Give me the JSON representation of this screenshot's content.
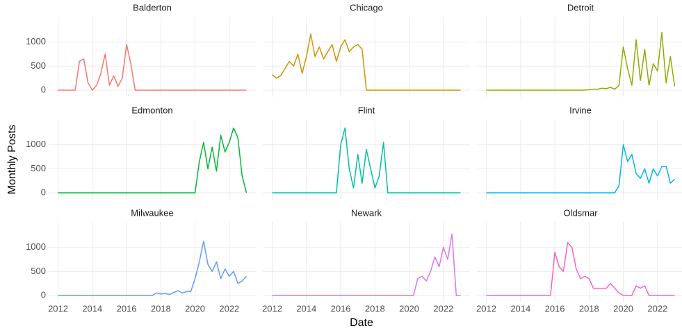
{
  "chart_data": {
    "type": "line",
    "x_label": "Date",
    "y_label": "Monthly Posts",
    "xlim": [
      2011.45,
      2023.55
    ],
    "ylim": [
      -145,
      1530
    ],
    "xticks": [
      2012,
      2014,
      2016,
      2018,
      2020,
      2022
    ],
    "yticks": [
      0,
      500,
      1000
    ],
    "grid": true,
    "x": [
      2012,
      2012.25,
      2012.5,
      2012.75,
      2013,
      2013.25,
      2013.5,
      2013.75,
      2014,
      2014.25,
      2014.5,
      2014.75,
      2015,
      2015.25,
      2015.5,
      2015.75,
      2016,
      2016.25,
      2016.5,
      2016.75,
      2017,
      2017.25,
      2017.5,
      2017.75,
      2018,
      2018.25,
      2018.5,
      2018.75,
      2019,
      2019.25,
      2019.5,
      2019.75,
      2020,
      2020.25,
      2020.5,
      2020.75,
      2021,
      2021.25,
      2021.5,
      2021.75,
      2022,
      2022.25,
      2022.5,
      2022.75,
      2023
    ],
    "facets": [
      {
        "title": "Balderton",
        "color": "#F8766D",
        "values": [
          0,
          0,
          0,
          0,
          0,
          600,
          650,
          150,
          0,
          100,
          350,
          750,
          100,
          300,
          80,
          250,
          950,
          550,
          0,
          0,
          0,
          0,
          0,
          0,
          0,
          0,
          0,
          0,
          0,
          0,
          0,
          0,
          0,
          0,
          0,
          0,
          0,
          0,
          0,
          0,
          0,
          0,
          0,
          0,
          0
        ]
      },
      {
        "title": "Chicago",
        "color": "#D39200",
        "values": [
          320,
          250,
          300,
          450,
          600,
          500,
          750,
          350,
          700,
          1170,
          700,
          900,
          650,
          800,
          950,
          600,
          900,
          1050,
          800,
          900,
          950,
          850,
          0,
          0,
          0,
          0,
          0,
          0,
          0,
          0,
          0,
          0,
          0,
          0,
          0,
          0,
          0,
          0,
          0,
          0,
          0,
          0,
          0,
          0,
          0
        ]
      },
      {
        "title": "Detroit",
        "color": "#93AA00",
        "values": [
          0,
          0,
          0,
          0,
          0,
          0,
          0,
          0,
          0,
          0,
          0,
          0,
          0,
          0,
          0,
          0,
          0,
          0,
          0,
          0,
          0,
          0,
          0,
          0,
          10,
          20,
          20,
          40,
          30,
          60,
          20,
          100,
          900,
          450,
          100,
          1050,
          200,
          850,
          100,
          550,
          400,
          1200,
          150,
          700,
          80
        ]
      },
      {
        "title": "Edmonton",
        "color": "#00BA38",
        "values": [
          0,
          0,
          0,
          0,
          0,
          0,
          0,
          0,
          0,
          0,
          0,
          0,
          0,
          0,
          0,
          0,
          0,
          0,
          0,
          0,
          0,
          0,
          0,
          0,
          0,
          0,
          0,
          0,
          0,
          0,
          0,
          0,
          0,
          650,
          1050,
          500,
          950,
          450,
          1200,
          850,
          1050,
          1350,
          1150,
          350,
          0
        ]
      },
      {
        "title": "Flint",
        "color": "#00C19F",
        "values": [
          0,
          0,
          0,
          0,
          0,
          0,
          0,
          0,
          0,
          0,
          0,
          0,
          0,
          0,
          0,
          0,
          1000,
          1350,
          500,
          100,
          800,
          200,
          900,
          500,
          100,
          350,
          1050,
          0,
          0,
          0,
          0,
          0,
          0,
          0,
          0,
          0,
          0,
          0,
          0,
          0,
          0,
          0,
          0,
          0,
          0
        ]
      },
      {
        "title": "Irvine",
        "color": "#00B9E3",
        "values": [
          0,
          0,
          0,
          0,
          0,
          0,
          0,
          0,
          0,
          0,
          0,
          0,
          0,
          0,
          0,
          0,
          0,
          0,
          0,
          0,
          0,
          0,
          0,
          0,
          0,
          0,
          0,
          0,
          0,
          0,
          0,
          150,
          1000,
          650,
          800,
          400,
          300,
          500,
          200,
          500,
          350,
          550,
          550,
          200,
          280
        ]
      },
      {
        "title": "Milwaukee",
        "color": "#619CFF",
        "values": [
          0,
          0,
          0,
          0,
          0,
          0,
          0,
          0,
          0,
          0,
          0,
          0,
          0,
          0,
          0,
          0,
          0,
          0,
          0,
          0,
          0,
          0,
          0,
          50,
          30,
          40,
          20,
          60,
          100,
          50,
          80,
          80,
          350,
          700,
          1130,
          650,
          500,
          700,
          350,
          550,
          400,
          500,
          250,
          300,
          400
        ]
      },
      {
        "title": "Newark",
        "color": "#DB72FB",
        "values": [
          0,
          0,
          0,
          0,
          0,
          0,
          0,
          0,
          0,
          0,
          0,
          0,
          0,
          0,
          0,
          0,
          0,
          0,
          0,
          0,
          0,
          0,
          0,
          0,
          0,
          0,
          0,
          0,
          0,
          0,
          0,
          0,
          0,
          0,
          350,
          400,
          300,
          500,
          800,
          600,
          1000,
          750,
          1280,
          0,
          0
        ]
      },
      {
        "title": "Oldsmar",
        "color": "#FF61C3",
        "values": [
          0,
          0,
          0,
          0,
          0,
          0,
          0,
          0,
          0,
          0,
          0,
          0,
          0,
          0,
          0,
          0,
          900,
          600,
          500,
          1100,
          1000,
          550,
          350,
          400,
          350,
          150,
          150,
          150,
          150,
          250,
          150,
          50,
          0,
          0,
          0,
          200,
          150,
          200,
          0,
          0,
          0,
          0,
          0,
          0,
          0
        ]
      }
    ]
  }
}
